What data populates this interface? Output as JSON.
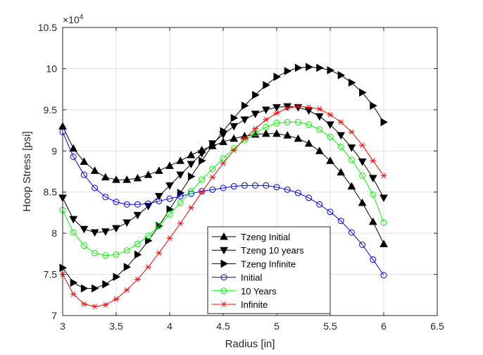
{
  "chart_data": {
    "type": "line",
    "xlabel": "Radius [in]",
    "ylabel": "Hoop Stress [psi]",
    "exponent_label": "×10",
    "exponent_power": "4",
    "xlim": [
      3,
      6.5
    ],
    "ylim": [
      7,
      10.5
    ],
    "x_ticks": [
      "3",
      "3.5",
      "4",
      "4.5",
      "5",
      "5.5",
      "6",
      "6.5"
    ],
    "y_ticks": [
      "7",
      "7.5",
      "8",
      "8.5",
      "9",
      "9.5",
      "10",
      "10.5"
    ],
    "grid": true,
    "legend_position": "lower-center",
    "series": [
      {
        "name": "Tzeng Initial",
        "color": "#000000",
        "marker": "triangle-up",
        "x": [
          3.0,
          3.1,
          3.2,
          3.3,
          3.4,
          3.5,
          3.6,
          3.7,
          3.8,
          3.9,
          4.0,
          4.1,
          4.2,
          4.3,
          4.4,
          4.5,
          4.6,
          4.7,
          4.8,
          4.9,
          5.0,
          5.1,
          5.2,
          5.3,
          5.4,
          5.5,
          5.6,
          5.7,
          5.8,
          5.9,
          6.0
        ],
        "y": [
          9.3,
          9.03,
          8.87,
          8.76,
          8.68,
          8.65,
          8.65,
          8.67,
          8.71,
          8.76,
          8.82,
          8.88,
          8.95,
          9.01,
          9.06,
          9.11,
          9.15,
          9.18,
          9.2,
          9.21,
          9.21,
          9.19,
          9.15,
          9.09,
          9.0,
          8.88,
          8.74,
          8.57,
          8.37,
          8.14,
          7.87
        ]
      },
      {
        "name": "Tzeng 10 years",
        "color": "#000000",
        "marker": "triangle-down",
        "x": [
          3.0,
          3.1,
          3.2,
          3.3,
          3.4,
          3.5,
          3.6,
          3.7,
          3.8,
          3.9,
          4.0,
          4.1,
          4.2,
          4.3,
          4.4,
          4.5,
          4.6,
          4.7,
          4.8,
          4.9,
          5.0,
          5.1,
          5.2,
          5.3,
          5.4,
          5.5,
          5.6,
          5.7,
          5.8,
          5.9,
          6.0
        ],
        "y": [
          8.43,
          8.17,
          8.05,
          8.01,
          8.02,
          8.06,
          8.13,
          8.22,
          8.33,
          8.45,
          8.58,
          8.71,
          8.84,
          8.97,
          9.09,
          9.2,
          9.3,
          9.38,
          9.45,
          9.5,
          9.53,
          9.54,
          9.53,
          9.49,
          9.42,
          9.32,
          9.19,
          9.04,
          8.87,
          8.67,
          8.43
        ]
      },
      {
        "name": "Tzeng Infinite",
        "color": "#000000",
        "marker": "triangle-right",
        "x": [
          3.0,
          3.1,
          3.2,
          3.3,
          3.4,
          3.5,
          3.6,
          3.7,
          3.8,
          3.9,
          4.0,
          4.1,
          4.2,
          4.3,
          4.4,
          4.5,
          4.6,
          4.7,
          4.8,
          4.9,
          5.0,
          5.1,
          5.2,
          5.3,
          5.4,
          5.5,
          5.6,
          5.7,
          5.8,
          5.9,
          6.0
        ],
        "y": [
          7.58,
          7.4,
          7.33,
          7.33,
          7.38,
          7.47,
          7.59,
          7.74,
          7.91,
          8.09,
          8.29,
          8.49,
          8.69,
          8.88,
          9.07,
          9.24,
          9.4,
          9.55,
          9.68,
          9.8,
          9.9,
          9.97,
          10.01,
          10.02,
          10.01,
          9.98,
          9.92,
          9.83,
          9.71,
          9.55,
          9.35
        ]
      },
      {
        "name": "Initial",
        "color": "#0000ff",
        "marker": "circle",
        "x": [
          3.0,
          3.1,
          3.2,
          3.3,
          3.4,
          3.5,
          3.6,
          3.7,
          3.8,
          3.9,
          4.0,
          4.1,
          4.2,
          4.3,
          4.4,
          4.5,
          4.6,
          4.7,
          4.8,
          4.9,
          5.0,
          5.1,
          5.2,
          5.3,
          5.4,
          5.5,
          5.6,
          5.7,
          5.8,
          5.9,
          6.0
        ],
        "y": [
          9.23,
          8.93,
          8.71,
          8.55,
          8.44,
          8.38,
          8.35,
          8.35,
          8.36,
          8.39,
          8.42,
          8.45,
          8.48,
          8.51,
          8.53,
          8.55,
          8.57,
          8.58,
          8.58,
          8.58,
          8.56,
          8.53,
          8.49,
          8.43,
          8.35,
          8.26,
          8.15,
          8.01,
          7.86,
          7.68,
          7.49
        ]
      },
      {
        "name": "10 Years",
        "color": "#00ff00",
        "marker": "circle",
        "x": [
          3.0,
          3.1,
          3.2,
          3.3,
          3.4,
          3.5,
          3.6,
          3.7,
          3.8,
          3.9,
          4.0,
          4.1,
          4.2,
          4.3,
          4.4,
          4.5,
          4.6,
          4.7,
          4.8,
          4.9,
          5.0,
          5.1,
          5.2,
          5.3,
          5.4,
          5.5,
          5.6,
          5.7,
          5.8,
          5.9,
          6.0
        ],
        "y": [
          8.28,
          8.01,
          7.85,
          7.76,
          7.73,
          7.74,
          7.79,
          7.87,
          7.97,
          8.09,
          8.23,
          8.37,
          8.51,
          8.65,
          8.78,
          8.91,
          9.03,
          9.13,
          9.22,
          9.29,
          9.34,
          9.35,
          9.35,
          9.32,
          9.26,
          9.17,
          9.05,
          8.89,
          8.7,
          8.47,
          8.13
        ]
      },
      {
        "name": "Infinite",
        "color": "#ff0000",
        "marker": "asterisk",
        "x": [
          3.0,
          3.1,
          3.2,
          3.3,
          3.4,
          3.5,
          3.6,
          3.7,
          3.8,
          3.9,
          4.0,
          4.1,
          4.2,
          4.3,
          4.4,
          4.5,
          4.6,
          4.7,
          4.8,
          4.9,
          5.0,
          5.1,
          5.2,
          5.3,
          5.4,
          5.5,
          5.6,
          5.7,
          5.8,
          5.9,
          6.0
        ],
        "y": [
          7.5,
          7.26,
          7.14,
          7.11,
          7.13,
          7.2,
          7.31,
          7.44,
          7.59,
          7.76,
          7.94,
          8.12,
          8.31,
          8.5,
          8.68,
          8.85,
          9.01,
          9.15,
          9.27,
          9.38,
          9.46,
          9.52,
          9.54,
          9.53,
          9.51,
          9.44,
          9.35,
          9.23,
          9.07,
          8.88,
          8.7
        ]
      }
    ]
  }
}
